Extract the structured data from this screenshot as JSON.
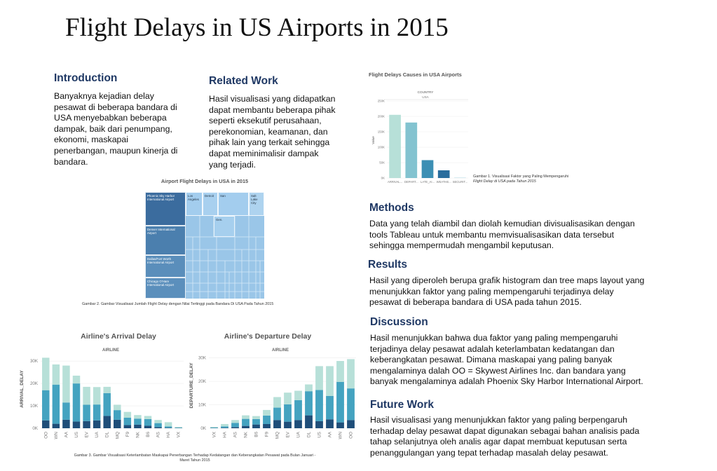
{
  "page_title": "Flight Delays in US Airports in 2015",
  "intro": {
    "heading": "Introduction",
    "lines": [
      "Banyaknya kejadian delay",
      "pesawat di beberapa bandara di",
      "USA menyebabkan beberapa",
      "dampak, baik dari penumpang,",
      "ekonomi, maskapai",
      "penerbangan, maupun kinerja di",
      "bandara."
    ]
  },
  "related": {
    "heading": "Related Work",
    "lines": [
      "Hasil visualisasi yang didapatkan",
      "dapat membantu beberapa pihak",
      "seperti eksekutif perusahaan,",
      "perekonomian, keamanan, dan",
      "pihak lain yang terkait sehingga",
      "dapat meminimalisir dampak",
      "yang terjadi."
    ]
  },
  "methods": {
    "heading": "Methods",
    "lines": [
      "Data yang telah diambil dan diolah kemudian divisualisasikan dengan",
      "tools Tableau untuk membantu memvisualisasikan data tersebut",
      "sehingga mempermudah mengambil keputusan."
    ]
  },
  "results": {
    "heading": "Results",
    "lines": [
      "Hasil yang diperoleh berupa grafik histogram dan tree maps layout yang",
      "menunjukkan faktor yang paling mempengaruhi terjadinya delay",
      "pesawat di beberapa bandara di USA pada tahun 2015."
    ]
  },
  "discussion": {
    "heading": "Discussion",
    "lines": [
      "Hasil menunjukkan bahwa dua faktor yang paling mempengaruhi",
      "terjadinya delay pesawat adalah keterlambatan kedatangan dan",
      "keberangkatan pesawat. Dimana maskapai yang paling banyak",
      "mengalaminya dalah OO = Skywest Airlines Inc. dan bandara yang",
      "banyak mengalaminya adalah Phoenix Sky Harbor International Airport."
    ]
  },
  "future": {
    "heading": "Future Work",
    "lines": [
      "Hasil visualisasi yang menunjukkan faktor yang paling berpengaruh",
      "terhadap delay pesawat dapat digunakan sebagai bahan analisis pada",
      "tahap selanjutnya oleh analis agar dapat membuat keputusan serta",
      "penanggulangan yang tepat terhadap masalah delay pesawat."
    ]
  },
  "captions": {
    "fig1_line1": "Gambar 1. Visualisasi Faktor yang Paling Mempengaruhi",
    "fig1_line2": "Flight Delay di USA pada Tahun 2015",
    "fig2": "Gambar 2. Gambar Visualisasi Jumlah Flight Delay dengan Nilai Tertinggi pada Bandara Di USA Pada Tahun 2015",
    "fig3_line1": "Gambar 3. Gambar Visualisasi Keterlambatan Maskapai Penerbangan Terhadap Kedatangan dan Keberangkatan Pesawat pada Bulan Januari -",
    "fig3_line2": "Maret Tahun 2015"
  },
  "colors": {
    "heading": "#1f3864",
    "light": "#b7e0d8",
    "mid": "#44a3c0",
    "dark": "#1f4e79",
    "treemap_dark": "#3e6fa0",
    "treemap_light": "#97c3e6"
  },
  "chart_data": [
    {
      "id": "causes",
      "type": "bar",
      "title": "Flight Delays Causes in USA Airports",
      "header_label": "COUNTRY",
      "header_value": "USA",
      "ylabel": "Value",
      "categories": [
        "ARRIVAL...",
        "DEPART...",
        "LATE_AI...",
        "WEATHE...",
        "SECURIT..."
      ],
      "values": [
        205000,
        180000,
        58000,
        25000,
        2000
      ],
      "yticks": [
        0,
        50000,
        100000,
        150000,
        200000,
        250000
      ],
      "ytick_labels": [
        "0K",
        "50K",
        "100K",
        "150K",
        "200K",
        "250K"
      ],
      "ylim": [
        0,
        250000
      ],
      "bar_colors": [
        "#b7e0d8",
        "#83c3d0",
        "#3c8fb4",
        "#2a6d9d",
        "#d0e7ee"
      ]
    },
    {
      "id": "treemap",
      "type": "treemap",
      "title": "Airport Flight Delays in USA in 2015",
      "labels": [
        "Phoenix Sky Harbor International Airport",
        "Los Angeles",
        "Detroit",
        "San",
        "Salt Lake City",
        "Denver International Airport",
        "Gen.",
        "Dallas/Fort Worth International Airport",
        "Chicago O'Hare International Airport"
      ]
    },
    {
      "id": "arrival",
      "type": "bar",
      "stacked": true,
      "title": "Airline's Arrival Delay",
      "header": "AIRLINE",
      "ylabel": "ARRIVAL_DELAY",
      "categories": [
        "OO",
        "WN",
        "AA",
        "US",
        "EV",
        "UA",
        "DL",
        "MQ",
        "F9",
        "NK",
        "B6",
        "AS",
        "HA",
        "VX"
      ],
      "series": [
        {
          "values": [
            3500,
            2000,
            3800,
            3000,
            3200,
            3500,
            5500,
            3800,
            1400,
            1600,
            1100,
            500,
            200,
            100
          ]
        },
        {
          "values": [
            13500,
            17500,
            7700,
            17000,
            7300,
            7100,
            10200,
            4300,
            3300,
            2700,
            3000,
            1800,
            600,
            200
          ]
        },
        {
          "values": [
            14500,
            9000,
            16500,
            3500,
            8000,
            7800,
            2800,
            2400,
            2600,
            1600,
            1400,
            1400,
            1900,
            300
          ]
        }
      ],
      "yticks": [
        0,
        10000,
        20000,
        30000
      ],
      "ytick_labels": [
        "0K",
        "10K",
        "20K",
        "30K"
      ],
      "ylim": [
        0,
        33500
      ]
    },
    {
      "id": "departure",
      "type": "bar",
      "stacked": true,
      "title": "Airline's Departure Delay",
      "header": "AIRLINE",
      "ylabel": "DEPARTURE_DELAY",
      "categories": [
        "VX",
        "HA",
        "AS",
        "NK",
        "B6",
        "F9",
        "MQ",
        "EV",
        "UA",
        "DL",
        "US",
        "AA",
        "WN",
        "OO"
      ],
      "series": [
        {
          "values": [
            100,
            200,
            500,
            1000,
            1600,
            1800,
            3500,
            2800,
            3500,
            5500,
            3000,
            3800,
            2500,
            3500
          ]
        },
        {
          "values": [
            200,
            600,
            1800,
            3000,
            2300,
            3600,
            5300,
            7400,
            8500,
            10300,
            13300,
            10000,
            17300,
            13500
          ]
        },
        {
          "values": [
            300,
            1000,
            1200,
            1500,
            1300,
            2400,
            4500,
            5000,
            4000,
            2900,
            10200,
            12700,
            8900,
            12500
          ]
        }
      ],
      "yticks": [
        0,
        10000,
        20000,
        30000
      ],
      "ytick_labels": [
        "0K",
        "10K",
        "20K",
        "30K"
      ],
      "ylim": [
        0,
        32000
      ]
    }
  ]
}
